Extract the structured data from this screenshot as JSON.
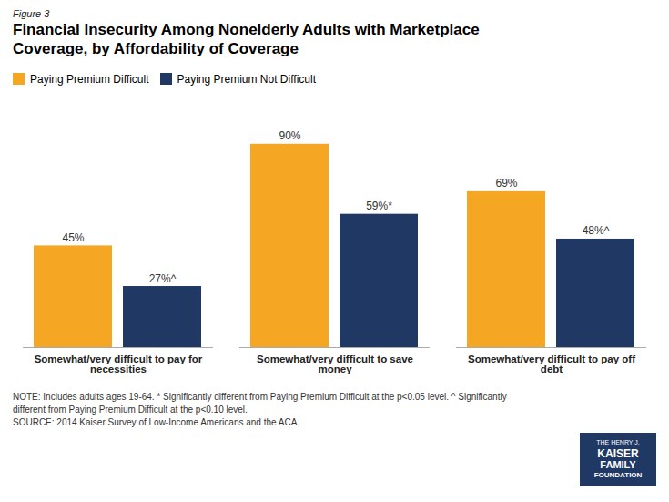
{
  "chart_data": {
    "type": "bar",
    "title": "Financial Insecurity Among Nonelderly Adults with Marketplace\nCoverage, by Affordability of Coverage",
    "annotations": [
      "Figure 3",
      "NOTE: Includes adults ages 19-64. * Significantly different from Paying Premium Difficult at the p<0.05 level.  ^ Significantly\ndifferent from Paying Premium Difficult at the p<0.10 level.\nSOURCE: 2014 Kaiser Survey of Low-Income Americans and the ACA.",
      "THE HENRY J.\nKAISER\nFAMILY\nFOUNDATION"
    ],
    "categories": [
      "Somewhat/very difficult to pay for\nnecessities",
      "Somewhat/very difficult to save\nmoney",
      "Somewhat/very difficult to pay off\ndebt"
    ],
    "series": [
      {
        "name": "Paying Premium Difficult",
        "color": "#F5A623",
        "values": [
          45,
          90,
          69
        ],
        "value_labels": [
          "45%",
          "90%",
          "69%"
        ]
      },
      {
        "name": "Paying Premium Not Difficult",
        "color": "#1F3864",
        "values": [
          27,
          59,
          48
        ],
        "value_labels": [
          "27%^",
          "59%*",
          "48%^"
        ]
      }
    ],
    "ylim": [
      0,
      100
    ],
    "grid": false,
    "legend": "upper left",
    "data_labels": true,
    "tick_labels": "x"
  }
}
